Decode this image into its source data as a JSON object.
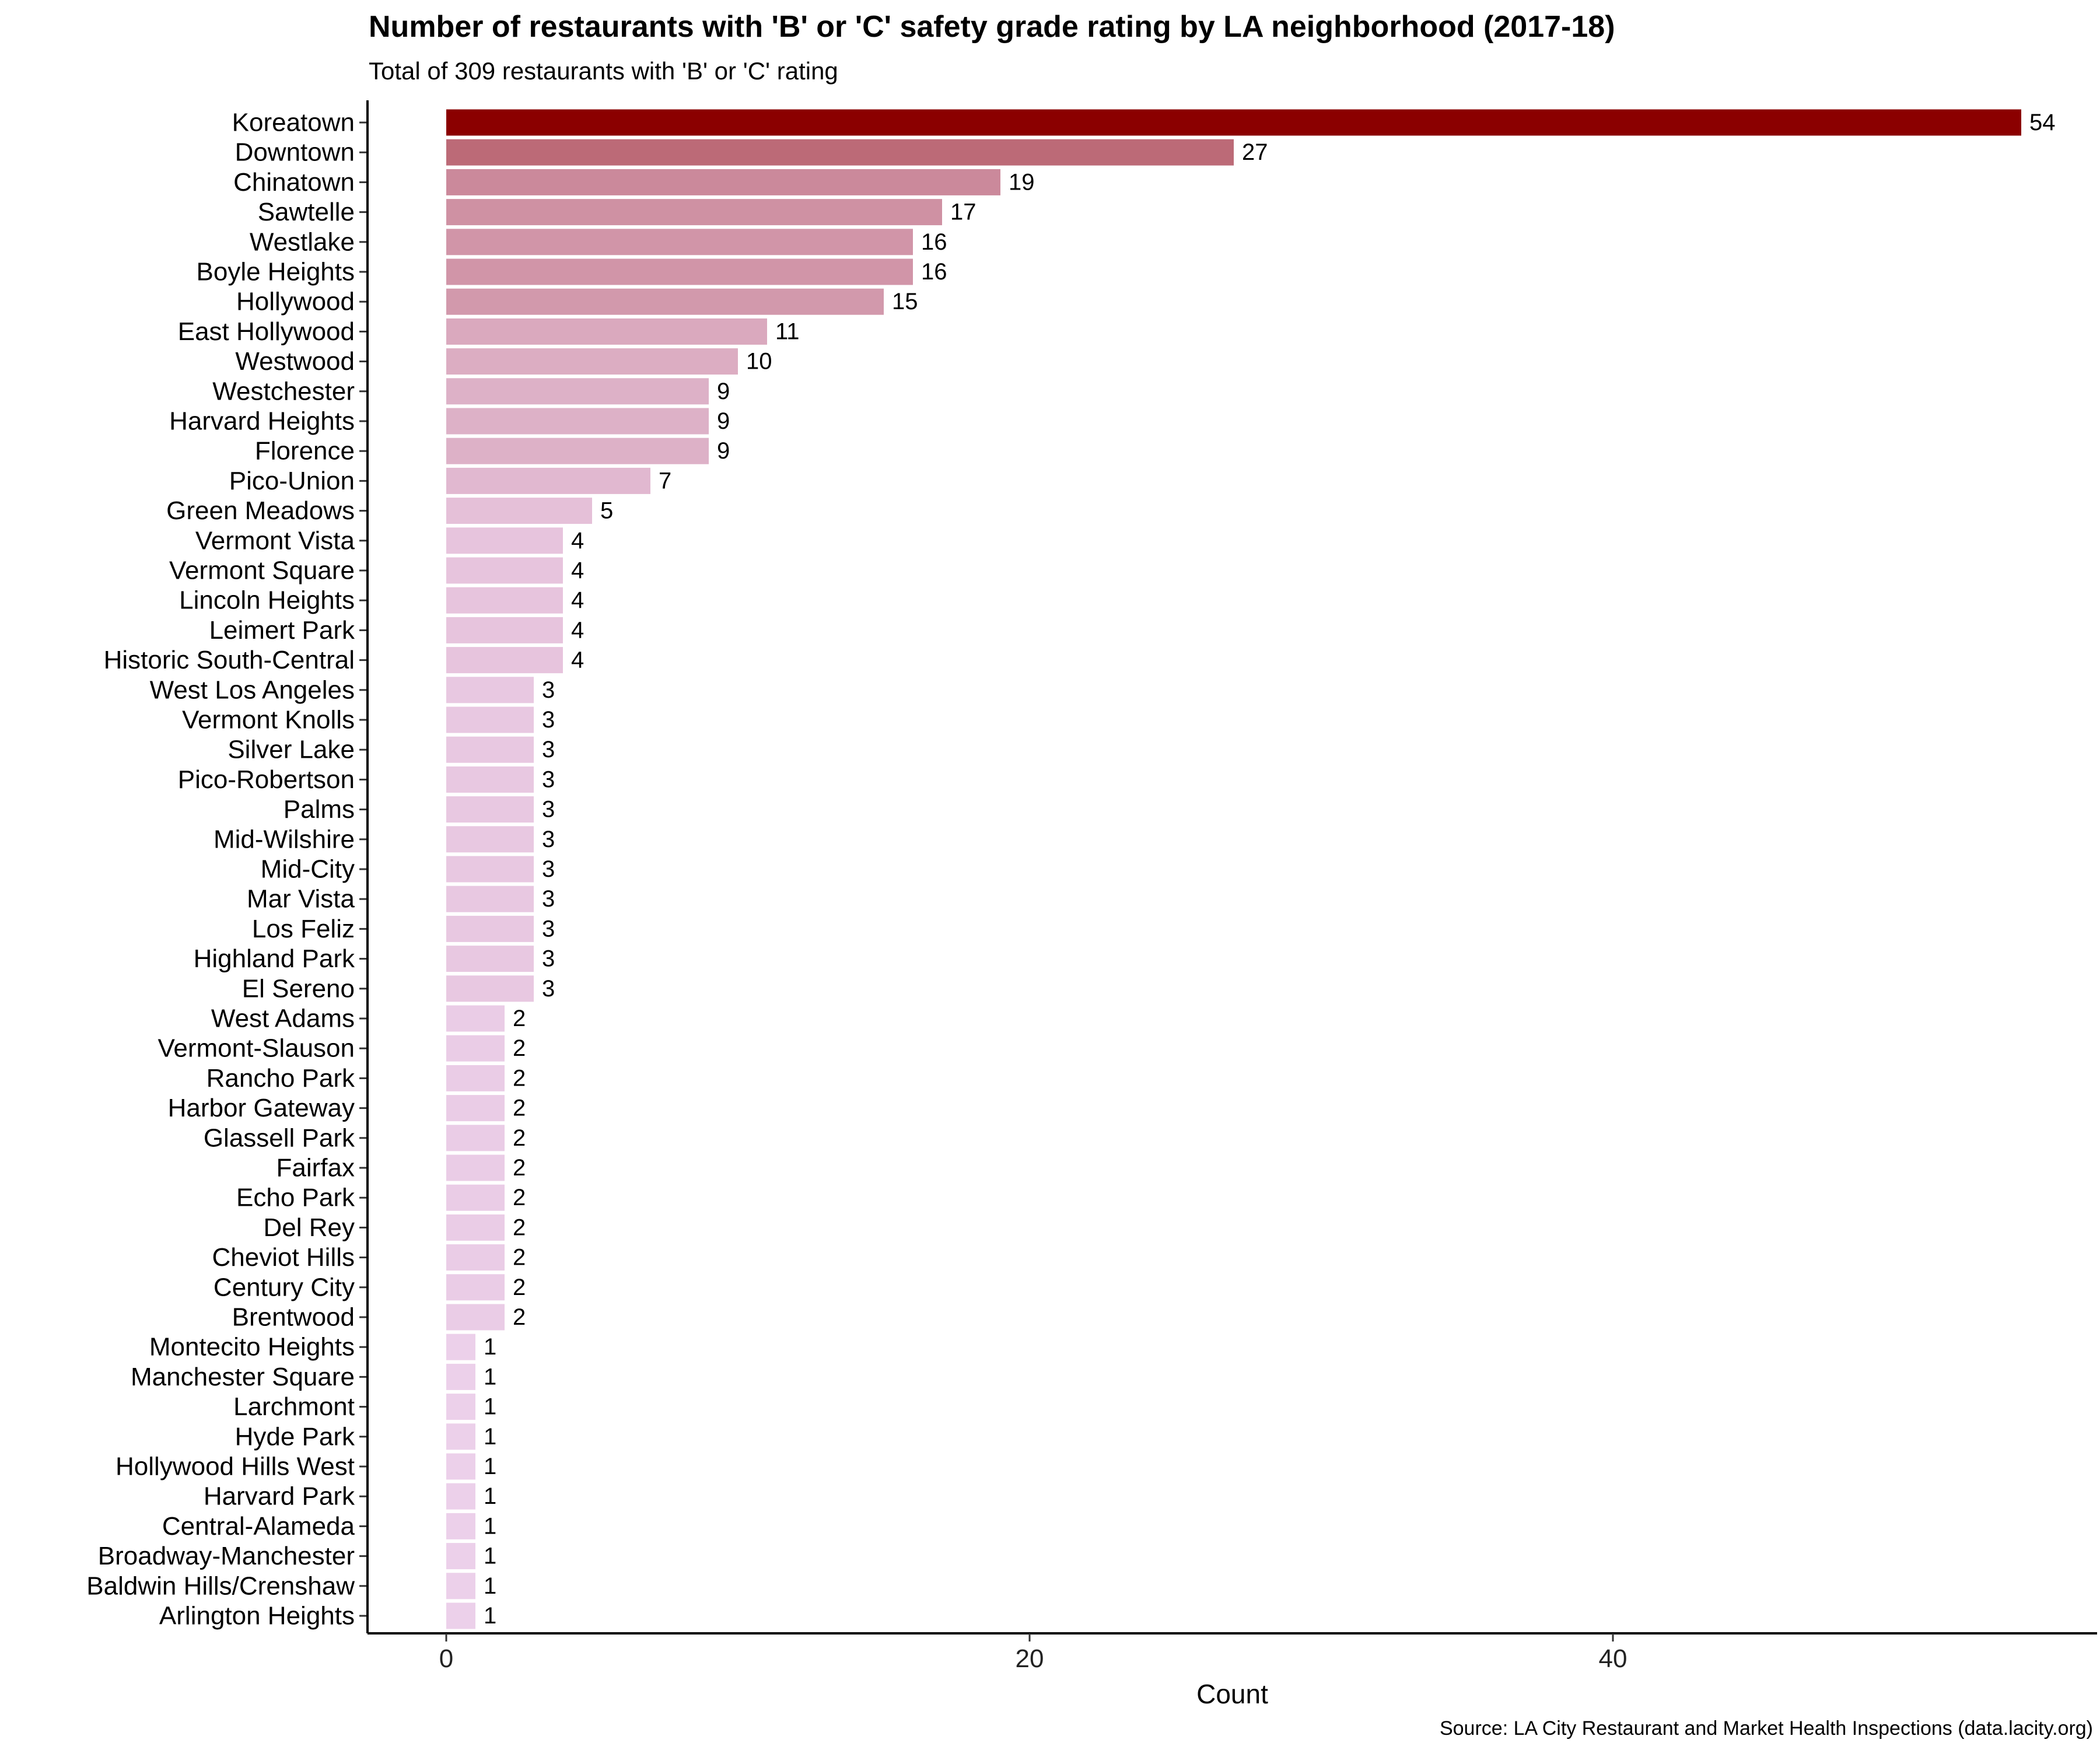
{
  "chart_data": {
    "type": "bar",
    "orientation": "horizontal",
    "title": "Number of restaurants with 'B' or 'C' safety grade rating by LA neighborhood (2017-18)",
    "subtitle": "Total of 309 restaurants with 'B' or 'C' rating",
    "xlabel": "Count",
    "ylabel": "",
    "caption": "Source: LA City Restaurant and Market Health Inspections (data.lacity.org)",
    "xlim": [
      0,
      54
    ],
    "xticks": [
      0,
      20,
      40
    ],
    "grid": false,
    "legend": "none",
    "color_low": "#ecd0ea",
    "color_high": "#8b0000",
    "categories": [
      "Koreatown",
      "Downtown",
      "Chinatown",
      "Sawtelle",
      "Westlake",
      "Boyle Heights",
      "Hollywood",
      "East Hollywood",
      "Westwood",
      "Westchester",
      "Harvard Heights",
      "Florence",
      "Pico-Union",
      "Green Meadows",
      "Vermont Vista",
      "Vermont Square",
      "Lincoln Heights",
      "Leimert Park",
      "Historic South-Central",
      "West Los Angeles",
      "Vermont Knolls",
      "Silver Lake",
      "Pico-Robertson",
      "Palms",
      "Mid-Wilshire",
      "Mid-City",
      "Mar Vista",
      "Los Feliz",
      "Highland Park",
      "El Sereno",
      "West Adams",
      "Vermont-Slauson",
      "Rancho Park",
      "Harbor Gateway",
      "Glassell Park",
      "Fairfax",
      "Echo Park",
      "Del Rey",
      "Cheviot Hills",
      "Century City",
      "Brentwood",
      "Montecito Heights",
      "Manchester Square",
      "Larchmont",
      "Hyde Park",
      "Hollywood Hills West",
      "Harvard Park",
      "Central-Alameda",
      "Broadway-Manchester",
      "Baldwin Hills/Crenshaw",
      "Arlington Heights"
    ],
    "values": [
      54,
      27,
      19,
      17,
      16,
      16,
      15,
      11,
      10,
      9,
      9,
      9,
      7,
      5,
      4,
      4,
      4,
      4,
      4,
      3,
      3,
      3,
      3,
      3,
      3,
      3,
      3,
      3,
      3,
      3,
      2,
      2,
      2,
      2,
      2,
      2,
      2,
      2,
      2,
      2,
      2,
      1,
      1,
      1,
      1,
      1,
      1,
      1,
      1,
      1,
      1
    ]
  }
}
